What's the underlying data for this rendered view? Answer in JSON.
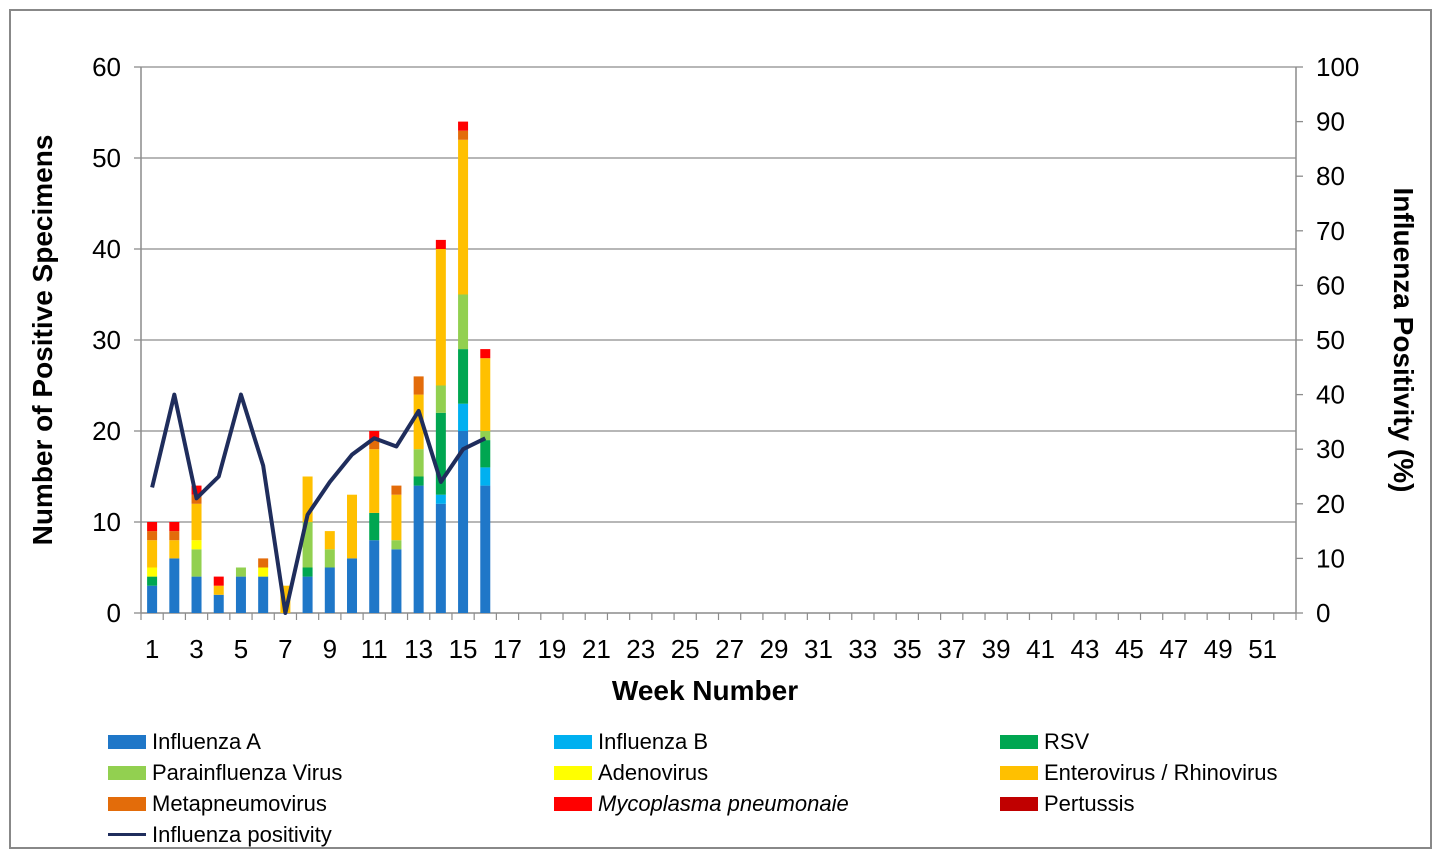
{
  "chart_data": {
    "type": "bar",
    "stacked": true,
    "xlabel": "Week Number",
    "ylabel": "Number of Positive Specimens",
    "y2label": "Influenza Positivity (%)",
    "ylim": [
      0,
      60
    ],
    "y2lim": [
      0,
      100
    ],
    "yticks": [
      0,
      10,
      20,
      30,
      40,
      50,
      60
    ],
    "y2ticks": [
      0,
      10,
      20,
      30,
      40,
      50,
      60,
      70,
      80,
      90,
      100
    ],
    "xlim": [
      1,
      52
    ],
    "xticks": [
      1,
      3,
      5,
      7,
      9,
      11,
      13,
      15,
      17,
      19,
      21,
      23,
      25,
      27,
      29,
      31,
      33,
      35,
      37,
      39,
      41,
      43,
      45,
      47,
      49,
      51
    ],
    "grid": true,
    "legend_position": "bottom",
    "categories": [
      1,
      2,
      3,
      4,
      5,
      6,
      7,
      8,
      9,
      10,
      11,
      12,
      13,
      14,
      15,
      16
    ],
    "series": [
      {
        "name": "Influenza A",
        "color": "#1F77C8",
        "values": [
          3,
          6,
          4,
          2,
          4,
          4,
          0,
          4,
          5,
          6,
          8,
          7,
          14,
          12,
          20,
          14
        ]
      },
      {
        "name": "Influenza B",
        "color": "#00B0F0",
        "values": [
          0,
          0,
          0,
          0,
          0,
          0,
          0,
          0,
          0,
          0,
          0,
          0,
          0,
          1,
          3,
          2
        ]
      },
      {
        "name": "RSV",
        "color": "#00A651",
        "values": [
          1,
          0,
          0,
          0,
          0,
          0,
          0,
          1,
          0,
          0,
          3,
          0,
          1,
          9,
          6,
          3
        ]
      },
      {
        "name": "Parainfluenza Virus",
        "color": "#92D050",
        "values": [
          0,
          0,
          3,
          0,
          1,
          0,
          0,
          5,
          2,
          0,
          0,
          1,
          3,
          3,
          6,
          1
        ]
      },
      {
        "name": "Adenovirus",
        "color": "#FFFF00",
        "values": [
          1,
          0,
          1,
          0,
          0,
          1,
          0,
          0,
          0,
          0,
          0,
          0,
          0,
          0,
          0,
          0
        ]
      },
      {
        "name": "Enterovirus / Rhinovirus",
        "color": "#FFC000",
        "values": [
          3,
          2,
          4,
          1,
          0,
          0,
          3,
          5,
          2,
          7,
          7,
          5,
          6,
          15,
          17,
          8
        ]
      },
      {
        "name": "Metapneumovirus",
        "color": "#E36C0A",
        "values": [
          1,
          1,
          1,
          0,
          0,
          1,
          0,
          0,
          0,
          0,
          1,
          1,
          2,
          0,
          1,
          0
        ]
      },
      {
        "name": "Mycoplasma pneumonaie",
        "color": "#FF0000",
        "values": [
          1,
          1,
          1,
          1,
          0,
          0,
          0,
          0,
          0,
          0,
          1,
          0,
          0,
          1,
          1,
          1
        ]
      },
      {
        "name": "Pertussis",
        "color": "#C00000",
        "values": [
          0,
          0,
          0,
          0,
          0,
          0,
          0,
          0,
          0,
          0,
          0,
          0,
          0,
          0,
          0,
          0
        ]
      }
    ],
    "line_series": {
      "name": "Influenza positivity",
      "color": "#1F2D5C",
      "axis": "right",
      "x": [
        1,
        2,
        3,
        4,
        5,
        6,
        7,
        8,
        9,
        10,
        11,
        12,
        13,
        14,
        15,
        16
      ],
      "values": [
        23,
        40,
        21,
        25,
        40,
        27,
        0,
        18,
        24,
        29,
        32,
        30.5,
        37,
        24,
        30,
        32
      ]
    }
  },
  "legend": {
    "items": [
      {
        "label": "Influenza A",
        "color": "#1F77C8",
        "italic": false
      },
      {
        "label": "Influenza B",
        "color": "#00B0F0",
        "italic": false
      },
      {
        "label": "RSV",
        "color": "#00A651",
        "italic": false
      },
      {
        "label": "Parainfluenza Virus",
        "color": "#92D050",
        "italic": false
      },
      {
        "label": "Adenovirus",
        "color": "#FFFF00",
        "italic": false
      },
      {
        "label": "Enterovirus / Rhinovirus",
        "color": "#FFC000",
        "italic": false
      },
      {
        "label": "Metapneumovirus",
        "color": "#E36C0A",
        "italic": false
      },
      {
        "label": "Mycoplasma pneumonaie",
        "color": "#FF0000",
        "italic": true
      },
      {
        "label": "Pertussis",
        "color": "#C00000",
        "italic": false
      }
    ],
    "line_item": {
      "label": "Influenza positivity",
      "color": "#1F2D5C"
    }
  }
}
